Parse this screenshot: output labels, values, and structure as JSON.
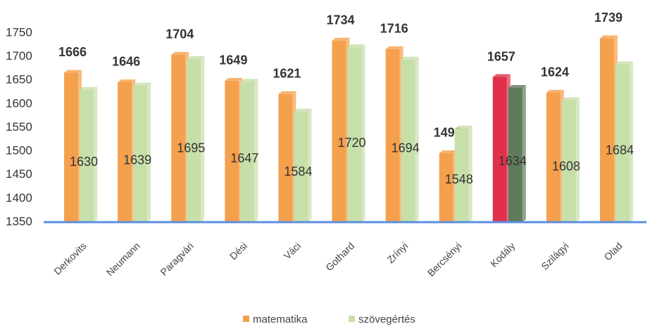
{
  "chart_data": {
    "type": "bar",
    "categories": [
      "Derkovits",
      "Neumann",
      "Paragvári",
      "Dési",
      "Váci",
      "Gothard",
      "Zrínyi",
      "Bercsényi",
      "Kodály",
      "Szilágyi",
      "Olad"
    ],
    "series": [
      {
        "name": "matematika",
        "color": "#f5a04c",
        "colors": [
          "#f5a04c",
          "#f5a04c",
          "#f5a04c",
          "#f5a04c",
          "#f5a04c",
          "#f5a04c",
          "#f5a04c",
          "#f5a04c",
          "#e0304a",
          "#f5a04c",
          "#f5a04c"
        ],
        "values": [
          1666,
          1646,
          1704,
          1649,
          1621,
          1734,
          1716,
          1496,
          1657,
          1624,
          1739
        ]
      },
      {
        "name": "szövegértés",
        "color": "#c7dfa9",
        "colors": [
          "#c7dfa9",
          "#c7dfa9",
          "#c7dfa9",
          "#c7dfa9",
          "#c7dfa9",
          "#c7dfa9",
          "#c7dfa9",
          "#c7dfa9",
          "#5e7b5b",
          "#c7dfa9",
          "#c7dfa9"
        ],
        "values": [
          1630,
          1639,
          1695,
          1647,
          1584,
          1720,
          1694,
          1548,
          1634,
          1608,
          1684
        ]
      }
    ],
    "ylim": [
      1350,
      1750
    ],
    "yticks": [
      1350,
      1400,
      1450,
      1500,
      1550,
      1600,
      1650,
      1700,
      1750
    ]
  }
}
